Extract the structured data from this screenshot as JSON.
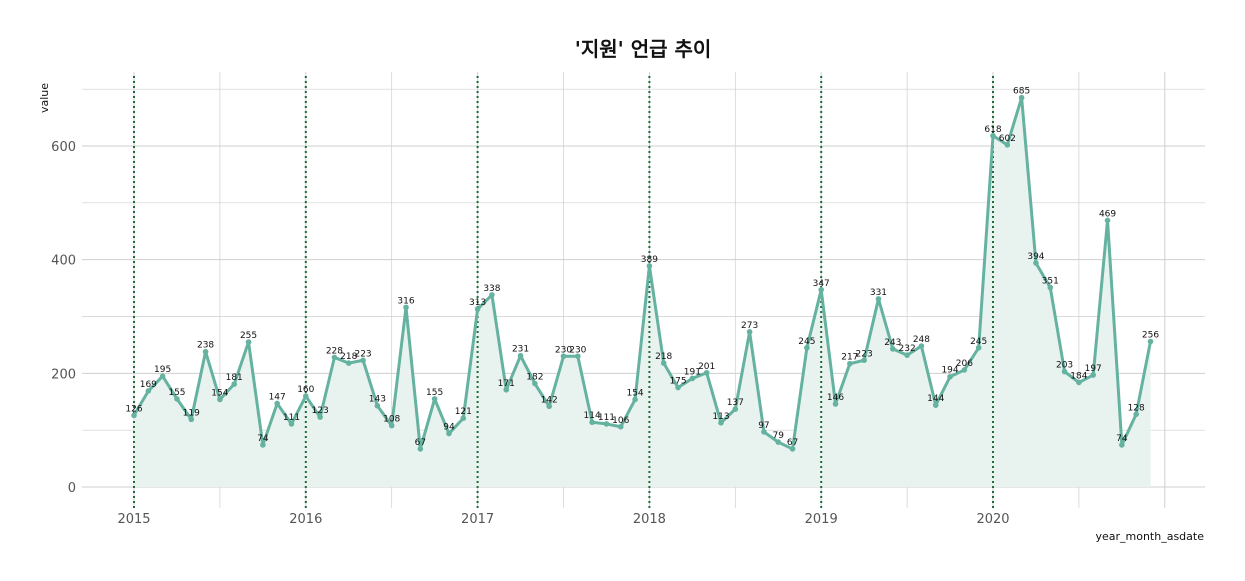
{
  "chart_data": {
    "type": "line",
    "title": "'지원' 언급 추이",
    "xlabel": "year_month_asdate",
    "ylabel": "value",
    "x_start": "2015-01",
    "x_frequency": "monthly",
    "x_ticks": [
      "2015",
      "2016",
      "2017",
      "2018",
      "2019",
      "2020"
    ],
    "y_ticks": [
      0,
      200,
      400,
      600
    ],
    "ylim": [
      -30,
      715
    ],
    "grid": true,
    "legend": "none",
    "colors": {
      "line": "#66b2a0",
      "area": "#e8f3ef",
      "vline": "#1e6b3a",
      "grid": "#cfcfcf"
    },
    "values": [
      126,
      169,
      195,
      155,
      119,
      238,
      154,
      181,
      255,
      74,
      147,
      111,
      160,
      123,
      228,
      218,
      223,
      143,
      108,
      316,
      67,
      155,
      94,
      121,
      313,
      338,
      171,
      231,
      182,
      142,
      230,
      230,
      114,
      111,
      106,
      154,
      389,
      218,
      175,
      191,
      201,
      113,
      137,
      273,
      97,
      79,
      67,
      245,
      347,
      146,
      217,
      223,
      331,
      243,
      232,
      248,
      144,
      194,
      206,
      245,
      618,
      602,
      685,
      394,
      351,
      203,
      184,
      197,
      469,
      74,
      128,
      256
    ]
  }
}
